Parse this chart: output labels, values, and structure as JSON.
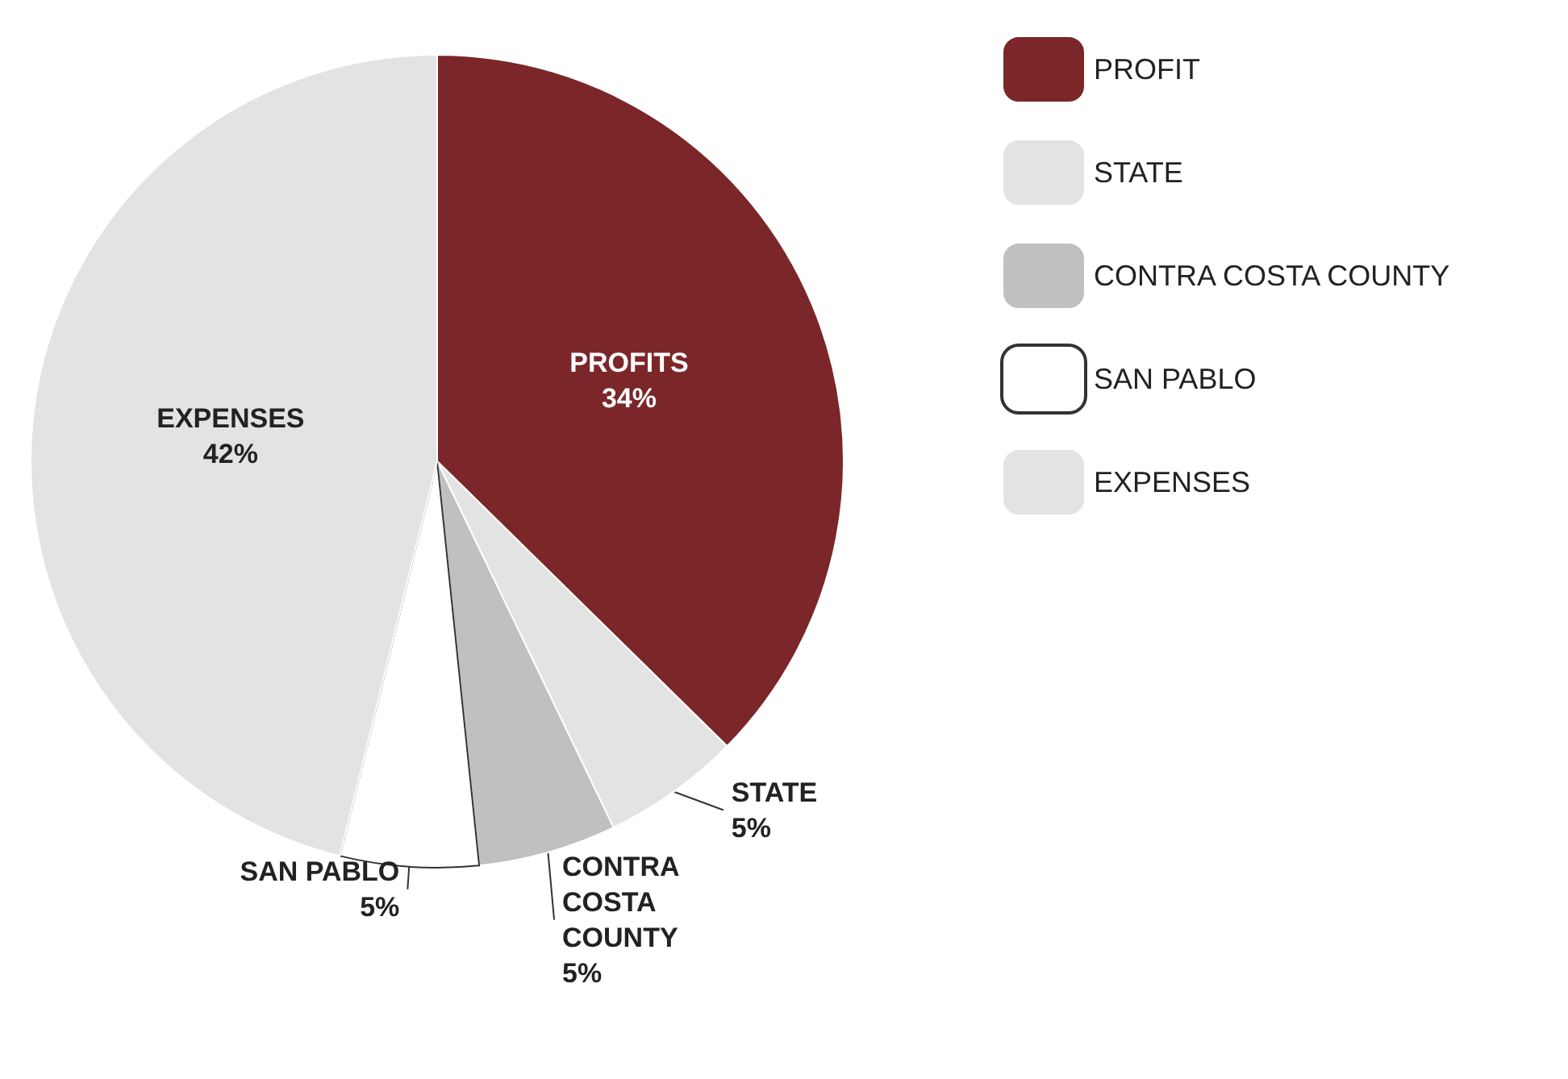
{
  "chart_data": {
    "type": "pie",
    "categories": [
      "PROFIT",
      "STATE",
      "CONTRA COSTA COUNTY",
      "SAN PABLO",
      "EXPENSES"
    ],
    "values": [
      34,
      5,
      5,
      5,
      42
    ],
    "colors": [
      "#7b2628",
      "#e3e3e3",
      "#c0c0c0",
      "#ffffff",
      "#e3e3e3"
    ],
    "value_labels": [
      "PROFITS\n34%",
      "STATE\n5%",
      "CONTRA\nCOSTA\nCOUNTY\n5%",
      "SAN PABLO\n5%",
      "EXPENSES\n42%"
    ],
    "legend": "top right"
  }
}
